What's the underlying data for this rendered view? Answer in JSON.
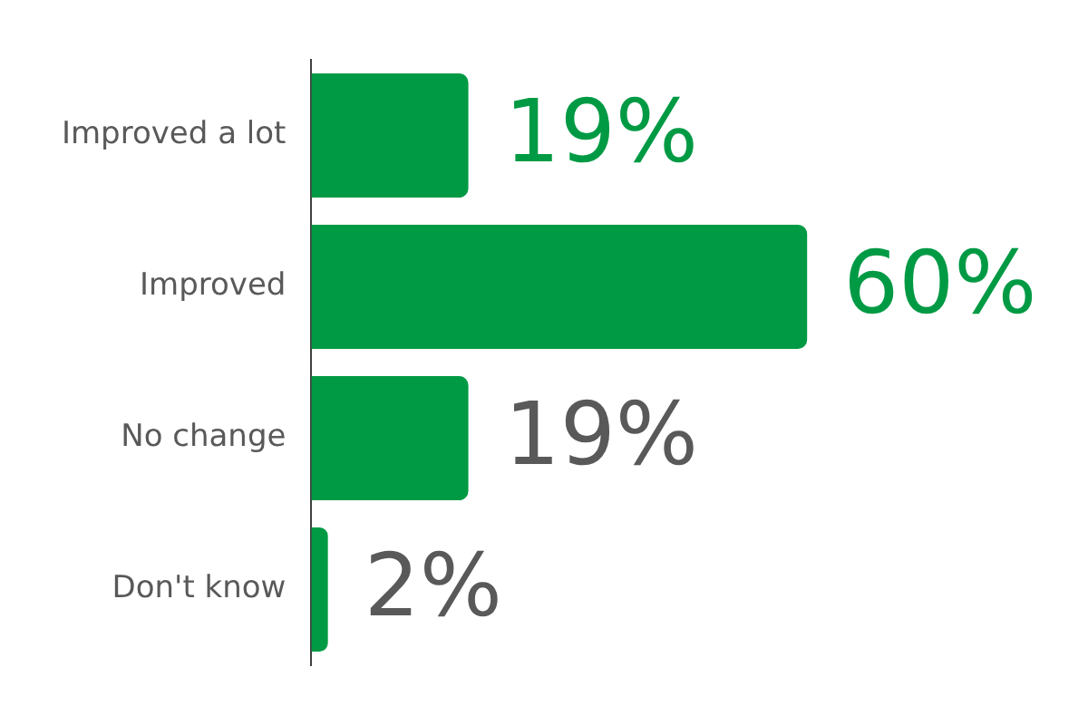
{
  "chart_data": {
    "type": "bar",
    "orientation": "horizontal",
    "categories": [
      "Improved a lot",
      "Improved",
      "No change",
      "Don't know"
    ],
    "values": [
      19,
      60,
      19,
      2
    ],
    "color": "#009a44",
    "value_labels": [
      "19%",
      "60%",
      "19%",
      "2%"
    ],
    "legend": false,
    "tick_labels": "y"
  }
}
